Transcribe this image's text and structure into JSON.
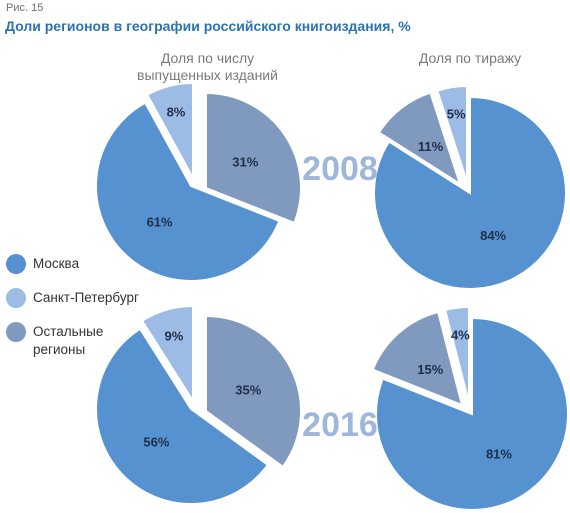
{
  "figure_label": "Рис. 15",
  "title": "Доли регионов в географии российского книгоиздания, %",
  "columns": [
    {
      "line1": "Доля по числу",
      "line2": "выпущенных изданий"
    },
    {
      "line1": "Доля по тиражу",
      "line2": ""
    }
  ],
  "legend": [
    {
      "line1": "Москва",
      "line2": "",
      "color": "#5592cf"
    },
    {
      "line1": "Санкт-Петербург",
      "line2": "",
      "color": "#9cbce6"
    },
    {
      "line1": "Остальные",
      "line2": "регионы",
      "color": "#8099bf"
    }
  ],
  "colors": {
    "moscow": "#5592cf",
    "spb": "#9cbce6",
    "other": "#8099bf",
    "year": "#9fb6da",
    "title": "#2b73b3"
  },
  "chart_data": [
    {
      "type": "pie",
      "year": "2008",
      "measure": "Доля по числу выпущенных изданий",
      "slices": [
        {
          "category": "Москва",
          "value": 61,
          "label": "61%"
        },
        {
          "category": "Санкт-Петербург",
          "value": 8,
          "label": "8%"
        },
        {
          "category": "Остальные регионы",
          "value": 31,
          "label": "31%"
        }
      ]
    },
    {
      "type": "pie",
      "year": "2008",
      "measure": "Доля по тиражу",
      "slices": [
        {
          "category": "Москва",
          "value": 84,
          "label": "84%"
        },
        {
          "category": "Санкт-Петербург",
          "value": 5,
          "label": "5%"
        },
        {
          "category": "Остальные регионы",
          "value": 11,
          "label": "11%"
        }
      ]
    },
    {
      "type": "pie",
      "year": "2016",
      "measure": "Доля по числу выпущенных изданий",
      "slices": [
        {
          "category": "Москва",
          "value": 56,
          "label": "56%"
        },
        {
          "category": "Санкт-Петербург",
          "value": 9,
          "label": "9%"
        },
        {
          "category": "Остальные регионы",
          "value": 35,
          "label": "35%"
        }
      ]
    },
    {
      "type": "pie",
      "year": "2016",
      "measure": "Доля по тиражу",
      "slices": [
        {
          "category": "Москва",
          "value": 81,
          "label": "81%"
        },
        {
          "category": "Санкт-Петербург",
          "value": 4,
          "label": "4%"
        },
        {
          "category": "Остальные регионы",
          "value": 15,
          "label": "15%"
        }
      ]
    }
  ],
  "years": [
    "2008",
    "2016"
  ]
}
